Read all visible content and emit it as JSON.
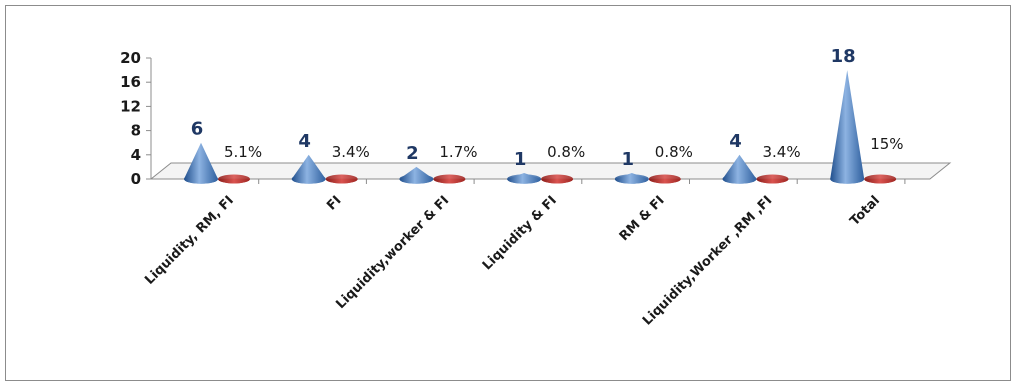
{
  "chart_data": {
    "type": "bar",
    "title": "",
    "xlabel": "",
    "ylabel": "",
    "ylim": [
      0,
      20
    ],
    "yticks": [
      "20",
      "16",
      "12",
      "8",
      "4",
      "0"
    ],
    "categories": [
      "Liquidity, RM, FI",
      "FI",
      "Liquidity,worker & FI",
      "Liquidity & FI",
      "RM & FI",
      "Liquidity,Worker ,RM ,FI",
      "Total"
    ],
    "series": [
      {
        "values": [
          6,
          4,
          2,
          1,
          1,
          4,
          18
        ],
        "labels": [
          "6",
          "4",
          "2",
          "1",
          "1",
          "4",
          "18"
        ],
        "color": "#4f81bd",
        "shape": "cone"
      },
      {
        "values": [
          5.1,
          3.4,
          1.7,
          0.8,
          0.8,
          3.4,
          15
        ],
        "labels": [
          "5.1%",
          "3.4%",
          "1.7%",
          "0.8%",
          "0.8%",
          "3.4%",
          "15%"
        ],
        "color": "#c0504d",
        "shape": "cone"
      }
    ],
    "grid": false,
    "legend": "none",
    "count_label_color": "#1f3864"
  }
}
